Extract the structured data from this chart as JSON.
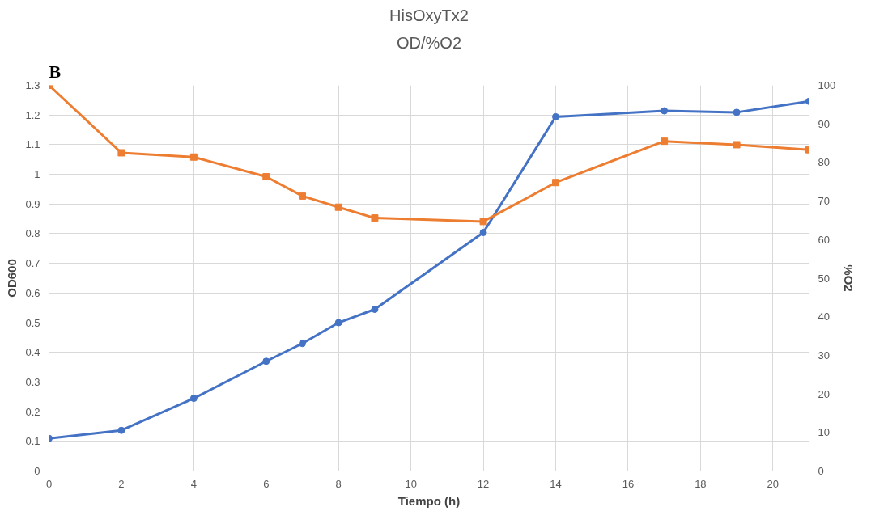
{
  "chart_data": {
    "type": "line",
    "title": "HisOxyTx2",
    "subtitle": "OD/%O2",
    "xlabel": "Tiempo (h)",
    "ylabel": "OD600",
    "y2label": "%O2",
    "annotations": [
      "B"
    ],
    "xlim": [
      0,
      21
    ],
    "xticks": [
      0,
      2,
      4,
      6,
      8,
      10,
      12,
      14,
      16,
      18,
      20
    ],
    "ylim": [
      0,
      1.3
    ],
    "yticks": [
      {
        "value": 0,
        "label": "0"
      },
      0.1,
      0.2,
      0.3,
      0.4,
      0.5,
      0.6,
      0.7,
      0.8,
      0.9,
      {
        "value": 1,
        "label": "1"
      },
      1.1,
      1.2,
      1.3
    ],
    "y2lim": [
      0,
      100
    ],
    "y2ticks": [
      0,
      10,
      20,
      30,
      40,
      50,
      60,
      70,
      80,
      90,
      100
    ],
    "grid": true,
    "series": [
      {
        "color": "#4472c4",
        "marker": "circle",
        "x": [
          0,
          2,
          4,
          6,
          7,
          8,
          9,
          12,
          14,
          17,
          19,
          21
        ],
        "values": [
          0.11,
          0.137,
          0.245,
          0.37,
          0.43,
          0.5,
          0.545,
          0.804,
          1.194,
          1.214,
          1.209,
          1.246
        ]
      },
      {
        "color": "#ed7d31",
        "marker": "square",
        "axis": "y2",
        "x": [
          0,
          2,
          4,
          6,
          7,
          8,
          9,
          12,
          14,
          17,
          19,
          21
        ],
        "values": [
          100,
          82.5,
          81.4,
          76.3,
          71.3,
          68.4,
          65.6,
          64.7,
          74.8,
          85.5,
          84.6,
          83.3
        ]
      }
    ]
  }
}
